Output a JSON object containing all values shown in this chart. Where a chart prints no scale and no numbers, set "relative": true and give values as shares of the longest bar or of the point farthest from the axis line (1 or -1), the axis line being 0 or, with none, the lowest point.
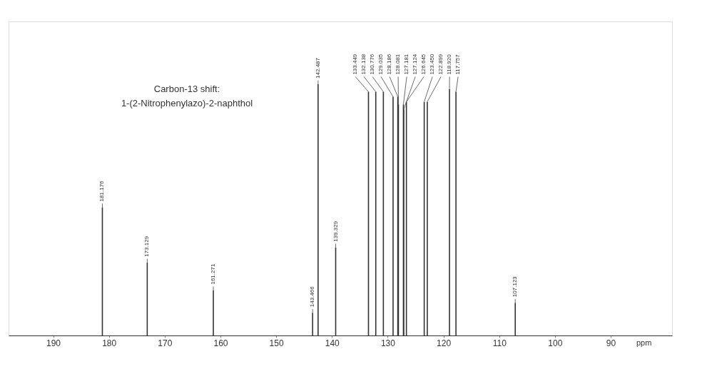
{
  "chart_data": {
    "type": "bar",
    "title": "Carbon-13 shift:",
    "subtitle": "1-(2-Nitrophenylazo)-2-naphthol",
    "xlabel": "ppm",
    "relative": true,
    "tick_labels": "x",
    "grid": false,
    "xlim": [
      198,
      79
    ],
    "xticks": [
      190,
      180,
      170,
      160,
      150,
      140,
      130,
      120,
      110,
      100,
      90
    ],
    "series": [
      {
        "color": "#333333",
        "x": [
          181.176,
          173.129,
          161.271,
          143.466,
          142.487,
          139.329,
          133.449,
          132.138,
          130.776,
          129.035,
          128.186,
          128.081,
          127.181,
          127.124,
          126.645,
          123.45,
          122.899,
          118.92,
          117.757,
          107.123
        ],
        "values": [
          0.51,
          0.29,
          0.18,
          0.09,
          1,
          0.35,
          0.97,
          0.97,
          0.97,
          0.95,
          0.95,
          0.92,
          0.92,
          0.9,
          0.93,
          0.93,
          0.93,
          0.98,
          0.97,
          0.13
        ]
      }
    ],
    "annotations": [
      {
        "text": "181.176",
        "x": 181.176,
        "y": 0.51
      },
      {
        "text": "173.129",
        "x": 173.129,
        "y": 0.29
      },
      {
        "text": "161.271",
        "x": 161.271,
        "y": 0.18
      },
      {
        "text": "143.466",
        "x": 143.466,
        "y": 0.09
      },
      {
        "text": "142.487",
        "x": 142.487,
        "y": 1
      },
      {
        "text": "139.329",
        "x": 139.329,
        "y": 0.35
      },
      {
        "text": "133.449",
        "x": 133.449,
        "y": 0.97
      },
      {
        "text": "132.138",
        "x": 132.138,
        "y": 0.97
      },
      {
        "text": "130.776",
        "x": 130.776,
        "y": 0.97
      },
      {
        "text": "129.035",
        "x": 129.035,
        "y": 0.95
      },
      {
        "text": "128.186",
        "x": 128.186,
        "y": 0.95
      },
      {
        "text": "128.081",
        "x": 128.081,
        "y": 0.92
      },
      {
        "text": "127.181",
        "x": 127.181,
        "y": 0.92
      },
      {
        "text": "127.124",
        "x": 127.124,
        "y": 0.9
      },
      {
        "text": "126.645",
        "x": 126.645,
        "y": 0.93
      },
      {
        "text": "123.450",
        "x": 123.45,
        "y": 0.93
      },
      {
        "text": "122.899",
        "x": 122.899,
        "y": 0.93
      },
      {
        "text": "118.920",
        "x": 118.92,
        "y": 0.98
      },
      {
        "text": "117.757",
        "x": 117.757,
        "y": 0.97
      },
      {
        "text": "107.123",
        "x": 107.123,
        "y": 0.13
      }
    ]
  }
}
